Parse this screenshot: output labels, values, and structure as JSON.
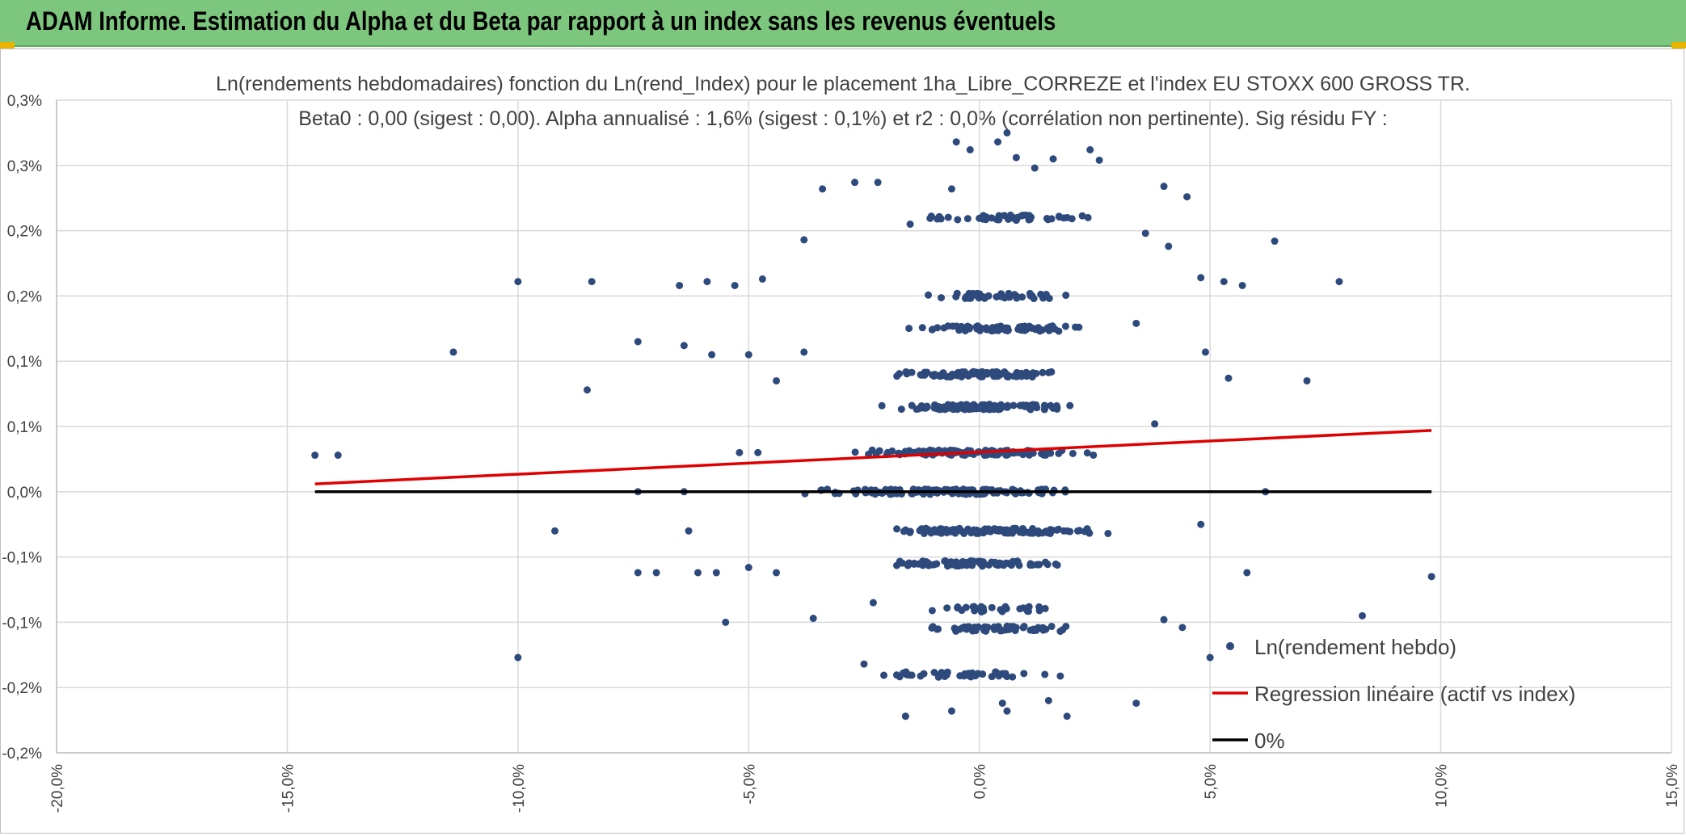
{
  "header": {
    "title": "ADAM Informe. Estimation du Alpha et du Beta par rapport à un index sans les revenus éventuels",
    "background_color": "#7dc67d",
    "accent_color": "#e8b400"
  },
  "chart_data": {
    "type": "scatter",
    "title": "Ln(rendements hebdomadaires) fonction du Ln(rend_Index) pour le placement 1ha_Libre_CORREZE et l'index EU STOXX 600 GROSS TR.",
    "subtitle": "Beta0 : 0,00 (sigest : 0,00). Alpha annualisé : 1,6% (sigest : 0,1%) et r2 : 0,0% (corrélation non pertinente). Sig résidu FY :",
    "xlabel": "",
    "ylabel": "",
    "xlim": [
      -0.2,
      0.15
    ],
    "ylim": [
      -0.002,
      0.003
    ],
    "x_tick_values": [
      -0.2,
      -0.15,
      -0.1,
      -0.05,
      0.0,
      0.05,
      0.1,
      0.15
    ],
    "x_tick_labels": [
      "-20,0%",
      "-15,0%",
      "-10,0%",
      "-5,0%",
      "0,0%",
      "5,0%",
      "10,0%",
      "15,0%"
    ],
    "y_tick_values": [
      0.003,
      0.0025,
      0.002,
      0.0015,
      0.001,
      0.0005,
      0.0,
      -0.0005,
      -0.001,
      -0.0015,
      -0.002
    ],
    "y_tick_labels": [
      "0,3%",
      "0,3%",
      "0,2%",
      "0,2%",
      "0,1%",
      "0,1%",
      "0,0%",
      "-0,1%",
      "-0,1%",
      "-0,2%",
      "-0,2%"
    ],
    "grid": true,
    "legend_position": "bottom-right",
    "series": [
      {
        "name": "Ln(rendement hebdo)",
        "kind": "scatter",
        "color": "#2e4a7d",
        "clusters": [
          {
            "y": 0.0,
            "x_min": -0.047,
            "x_max": 0.032,
            "count": 140
          },
          {
            "y": 0.0003,
            "x_min": -0.03,
            "x_max": 0.027,
            "count": 140
          },
          {
            "y": 0.00065,
            "x_min": -0.025,
            "x_max": 0.025,
            "count": 110
          },
          {
            "y": 0.0009,
            "x_min": -0.025,
            "x_max": 0.023,
            "count": 90
          },
          {
            "y": 0.00125,
            "x_min": -0.02,
            "x_max": 0.03,
            "count": 75
          },
          {
            "y": 0.0015,
            "x_min": -0.02,
            "x_max": 0.025,
            "count": 50
          },
          {
            "y": 0.0021,
            "x_min": -0.025,
            "x_max": 0.03,
            "count": 45
          },
          {
            "y": -0.0003,
            "x_min": -0.03,
            "x_max": 0.033,
            "count": 110
          },
          {
            "y": -0.00055,
            "x_min": -0.027,
            "x_max": 0.025,
            "count": 85
          },
          {
            "y": -0.0009,
            "x_min": -0.015,
            "x_max": 0.02,
            "count": 30
          },
          {
            "y": -0.00105,
            "x_min": -0.02,
            "x_max": 0.03,
            "count": 60
          },
          {
            "y": -0.0014,
            "x_min": -0.025,
            "x_max": 0.022,
            "count": 45
          }
        ],
        "points": [
          [
            -0.144,
            0.00028
          ],
          [
            -0.139,
            0.00028
          ],
          [
            -0.114,
            0.00107
          ],
          [
            -0.1,
            0.00161
          ],
          [
            -0.1,
            -0.00127
          ],
          [
            -0.092,
            -0.0003
          ],
          [
            -0.084,
            0.00161
          ],
          [
            -0.085,
            0.00078
          ],
          [
            -0.074,
            0.00115
          ],
          [
            -0.074,
            -0.00062
          ],
          [
            -0.07,
            -0.00062
          ],
          [
            -0.065,
            0.00158
          ],
          [
            -0.064,
            0.00112
          ],
          [
            -0.063,
            -0.0003
          ],
          [
            -0.061,
            -0.00062
          ],
          [
            -0.059,
            0.00161
          ],
          [
            -0.058,
            0.00105
          ],
          [
            -0.057,
            -0.00062
          ],
          [
            -0.055,
            -0.001
          ],
          [
            -0.053,
            0.00158
          ],
          [
            -0.052,
            0.0003
          ],
          [
            -0.05,
            0.00105
          ],
          [
            -0.05,
            -0.00058
          ],
          [
            -0.048,
            0.0003
          ],
          [
            -0.047,
            0.00163
          ],
          [
            -0.044,
            0.00085
          ],
          [
            -0.044,
            -0.00062
          ],
          [
            -0.038,
            0.00193
          ],
          [
            -0.038,
            0.00107
          ],
          [
            -0.036,
            -0.00097
          ],
          [
            -0.034,
            0.00232
          ],
          [
            -0.027,
            0.00237
          ],
          [
            -0.022,
            0.00237
          ],
          [
            -0.025,
            -0.00132
          ],
          [
            -0.023,
            -0.00085
          ],
          [
            -0.016,
            -0.00172
          ],
          [
            -0.015,
            0.00205
          ],
          [
            -0.006,
            0.00232
          ],
          [
            -0.005,
            0.00268
          ],
          [
            -0.002,
            0.00262
          ],
          [
            0.004,
            0.00268
          ],
          [
            0.006,
            0.00275
          ],
          [
            0.008,
            0.00256
          ],
          [
            0.012,
            0.00248
          ],
          [
            0.016,
            0.00255
          ],
          [
            0.024,
            0.00262
          ],
          [
            0.026,
            0.00254
          ],
          [
            0.04,
            0.00234
          ],
          [
            0.045,
            0.00226
          ],
          [
            0.036,
            0.00198
          ],
          [
            0.041,
            0.00188
          ],
          [
            0.034,
            0.00129
          ],
          [
            0.038,
            0.00052
          ],
          [
            0.048,
            0.00164
          ],
          [
            0.049,
            0.00107
          ],
          [
            0.053,
            0.00161
          ],
          [
            0.054,
            0.00087
          ],
          [
            0.057,
            0.00158
          ],
          [
            0.058,
            -0.00062
          ],
          [
            0.062,
            0.0
          ],
          [
            0.064,
            0.00192
          ],
          [
            0.071,
            0.00085
          ],
          [
            0.078,
            0.00161
          ],
          [
            0.083,
            -0.00095
          ],
          [
            0.098,
            -0.00065
          ],
          [
            0.048,
            -0.00025
          ],
          [
            0.05,
            -0.00127
          ],
          [
            0.04,
            -0.00098
          ],
          [
            0.044,
            -0.00104
          ],
          [
            0.034,
            -0.00162
          ],
          [
            -0.006,
            -0.00168
          ],
          [
            0.006,
            -0.00168
          ],
          [
            0.019,
            -0.00172
          ],
          [
            -0.016,
            -0.00172
          ],
          [
            0.005,
            -0.00162
          ],
          [
            0.015,
            -0.0016
          ],
          [
            -0.074,
            0.0
          ],
          [
            -0.064,
            0.0
          ],
          [
            0.062,
            0.0
          ]
        ]
      },
      {
        "name": "Regression linéaire (actif vs index)",
        "kind": "line",
        "color": "#e00000",
        "points": [
          [
            -0.144,
            6e-05
          ],
          [
            0.098,
            0.00047
          ]
        ]
      },
      {
        "name": "0%",
        "kind": "line",
        "color": "#000000",
        "points": [
          [
            -0.144,
            0.0
          ],
          [
            0.098,
            0.0
          ]
        ]
      }
    ]
  }
}
